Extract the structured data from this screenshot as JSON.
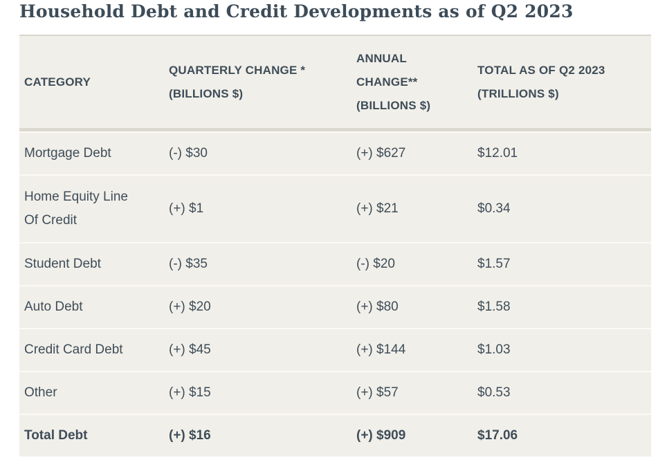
{
  "page": {
    "title": "Household Debt and Credit Developments as of Q2 2023"
  },
  "table": {
    "columns": [
      {
        "label": "CATEGORY"
      },
      {
        "label": "QUARTERLY CHANGE *\n(BILLIONS $)"
      },
      {
        "label": "ANNUAL\nCHANGE**\n(BILLIONS $)"
      },
      {
        "label": "TOTAL AS OF Q2 2023\n(TRILLIONS $)"
      }
    ],
    "rows": [
      {
        "category": "Mortgage Debt",
        "quarterly_change": "(-) $30",
        "annual_change": "(+) $627",
        "total": "$12.01"
      },
      {
        "category": "Home Equity Line\nOf Credit",
        "quarterly_change": "(+) $1",
        "annual_change": "(+) $21",
        "total": "$0.34"
      },
      {
        "category": "Student Debt",
        "quarterly_change": "(-) $35",
        "annual_change": "(-) $20",
        "total": "$1.57"
      },
      {
        "category": "Auto Debt",
        "quarterly_change": "(+) $20",
        "annual_change": "(+) $80",
        "total": "$1.58"
      },
      {
        "category": "Credit Card Debt",
        "quarterly_change": "(+) $45",
        "annual_change": "(+) $144",
        "total": "$1.03"
      },
      {
        "category": "Other",
        "quarterly_change": "(+) $15",
        "annual_change": "(+) $57",
        "total": "$0.53"
      },
      {
        "category": "Total Debt",
        "quarterly_change": "(+) $16",
        "annual_change": "(+) $909",
        "total": "$17.06"
      }
    ]
  },
  "chart_data": {
    "type": "table",
    "title": "Household Debt and Credit Developments as of Q2 2023",
    "columns": [
      "CATEGORY",
      "QUARTERLY CHANGE * (BILLIONS $)",
      "ANNUAL CHANGE** (BILLIONS $)",
      "TOTAL AS OF Q2 2023 (TRILLIONS $)"
    ],
    "categories": [
      "Mortgage Debt",
      "Home Equity Line Of Credit",
      "Student Debt",
      "Auto Debt",
      "Credit Card Debt",
      "Other",
      "Total Debt"
    ],
    "series": [
      {
        "name": "Quarterly Change (Billions $)",
        "values": [
          -30,
          1,
          -35,
          20,
          45,
          15,
          16
        ]
      },
      {
        "name": "Annual Change (Billions $)",
        "values": [
          627,
          21,
          -20,
          80,
          144,
          57,
          909
        ]
      },
      {
        "name": "Total as of Q2 2023 (Trillions $)",
        "values": [
          12.01,
          0.34,
          1.57,
          1.58,
          1.03,
          0.53,
          17.06
        ]
      }
    ]
  },
  "colors": {
    "table_background": "#f1efe9",
    "text": "#3e4d59",
    "title_text": "#3d4c58",
    "header_divider": "#dcdad0",
    "row_separator": "#fbfaf6",
    "table_top_border": "#d8d6cc",
    "page_background": "#ffffff"
  }
}
